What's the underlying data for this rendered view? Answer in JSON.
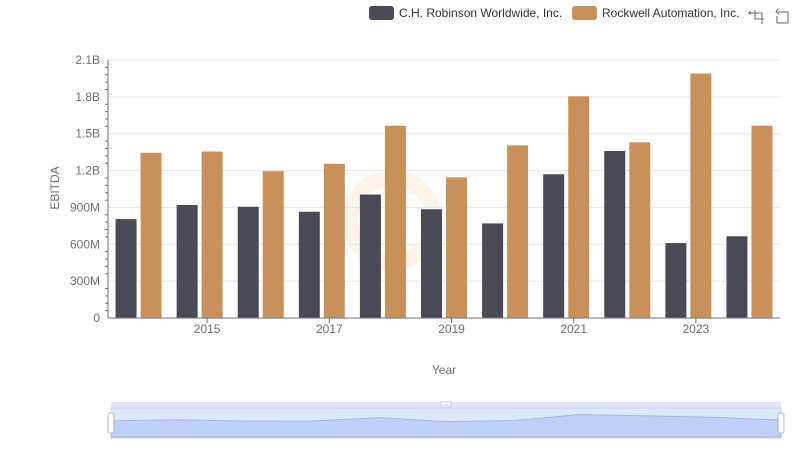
{
  "chart_data": {
    "type": "bar",
    "title": "",
    "xlabel": "Year",
    "ylabel": "EBITDA",
    "ylim": [
      0,
      2100000000
    ],
    "ytick_values": [
      0,
      300000000,
      600000000,
      900000000,
      1200000000,
      1500000000,
      1800000000,
      2100000000
    ],
    "ytick_labels": [
      "0",
      "300M",
      "600M",
      "900M",
      "1.2B",
      "1.5B",
      "1.8B",
      "2.1B"
    ],
    "categories": [
      "2014",
      "2015",
      "2016",
      "2017",
      "2018",
      "2019",
      "2020",
      "2021",
      "2022",
      "2023",
      "2024"
    ],
    "xtick_labels": [
      "2015",
      "2017",
      "2019",
      "2021",
      "2023"
    ],
    "series": [
      {
        "name": "C.H. Robinson Worldwide, Inc.",
        "color": "#4a4a56",
        "values": [
          805000000,
          920000000,
          905000000,
          865000000,
          1005000000,
          885000000,
          770000000,
          1170000000,
          1360000000,
          610000000,
          665000000
        ]
      },
      {
        "name": "Rockwell Automation, Inc.",
        "color": "#c8915c",
        "values": [
          1345000000,
          1355000000,
          1195000000,
          1255000000,
          1565000000,
          1145000000,
          1405000000,
          1805000000,
          1430000000,
          1990000000,
          1565000000
        ]
      }
    ],
    "grid": true,
    "legend_position": "top-right",
    "datazoom": {
      "present": true,
      "range_percent": [
        0,
        100
      ]
    }
  },
  "toolbox": {
    "zoom_icon": "zoom-select-icon",
    "restore_icon": "restore-icon"
  }
}
